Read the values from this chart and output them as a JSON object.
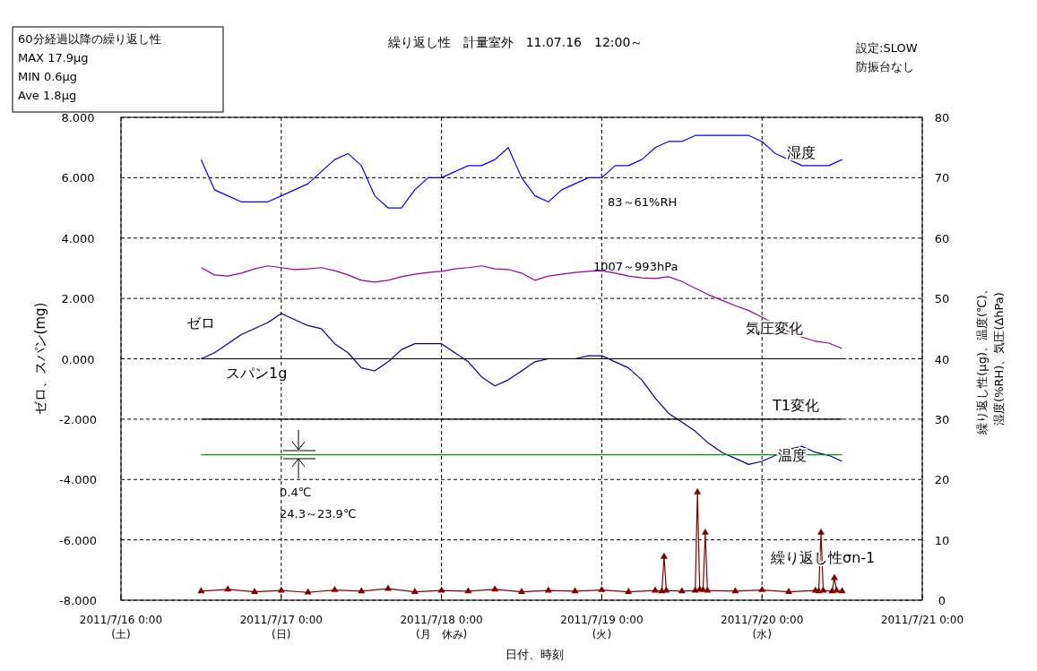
{
  "chart_data": {
    "type": "line",
    "title": "繰り返し性　計量室外　11.07.16　12:00～",
    "xlabel": "日付、時刻",
    "ylabel": "ゼロ、スパン(mg)",
    "y2label": "繰り返し性(μg)、温度(℃)、湿度(%RH)、気圧(ΔhPa)",
    "annotations": [
      "60分経過以降の繰り返し性\nMAX 17.9μg\nMIN 0.6μg\nAve 1.8μg",
      "設定:SLOW\n防振台なし",
      "83～61%RH",
      "1007～993hPa",
      "0.4℃",
      "24.3～23.9℃"
    ],
    "x": [
      "2011-07-16T12:00",
      "2011-07-16T14:00",
      "2011-07-16T16:00",
      "2011-07-16T18:00",
      "2011-07-16T20:00",
      "2011-07-16T22:00",
      "2011-07-17T00:00",
      "2011-07-17T02:00",
      "2011-07-17T04:00",
      "2011-07-17T06:00",
      "2011-07-17T08:00",
      "2011-07-17T10:00",
      "2011-07-17T12:00",
      "2011-07-17T14:00",
      "2011-07-17T16:00",
      "2011-07-17T18:00",
      "2011-07-17T20:00",
      "2011-07-17T22:00",
      "2011-07-18T00:00",
      "2011-07-18T02:00",
      "2011-07-18T04:00",
      "2011-07-18T06:00",
      "2011-07-18T08:00",
      "2011-07-18T10:00",
      "2011-07-18T12:00",
      "2011-07-18T14:00",
      "2011-07-18T16:00",
      "2011-07-18T18:00",
      "2011-07-18T20:00",
      "2011-07-18T22:00",
      "2011-07-19T00:00",
      "2011-07-19T02:00",
      "2011-07-19T04:00",
      "2011-07-19T06:00",
      "2011-07-19T08:00",
      "2011-07-19T10:00",
      "2011-07-19T12:00",
      "2011-07-19T14:00",
      "2011-07-19T16:00",
      "2011-07-19T18:00",
      "2011-07-19T20:00",
      "2011-07-19T22:00",
      "2011-07-20T00:00",
      "2011-07-20T02:00",
      "2011-07-20T04:00",
      "2011-07-20T06:00",
      "2011-07-20T08:00",
      "2011-07-20T10:00",
      "2011-07-20T12:00"
    ],
    "series": [
      {
        "name": "湿度",
        "color": "#0000ff",
        "axis": "y2",
        "values": [
          73,
          68,
          67,
          66,
          66,
          66,
          67,
          68,
          69,
          71,
          73,
          74,
          72,
          67,
          65,
          65,
          68,
          70,
          70,
          71,
          72,
          72,
          73,
          75,
          70,
          67,
          66,
          68,
          69,
          70,
          70,
          72,
          72,
          73,
          75,
          76,
          76,
          77,
          77,
          77,
          77,
          77,
          76,
          74,
          73,
          72,
          72,
          72,
          73
        ]
      },
      {
        "name": "気圧変化",
        "color": "#990099",
        "axis": "y2",
        "values": [
          55.1,
          53.9,
          53.7,
          54.2,
          54.9,
          55.4,
          55.1,
          54.8,
          54.9,
          55.1,
          54.6,
          53.9,
          53.0,
          52.7,
          53.0,
          53.6,
          54.0,
          54.3,
          54.5,
          54.9,
          55.1,
          55.4,
          54.9,
          54.8,
          54.2,
          53.0,
          53.7,
          54.0,
          54.3,
          54.5,
          54.6,
          54.2,
          53.7,
          53.4,
          53.3,
          53.6,
          52.8,
          51.7,
          50.6,
          49.7,
          48.8,
          48.0,
          46.9,
          45.7,
          44.5,
          43.6,
          42.9,
          42.6,
          41.7
        ]
      },
      {
        "name": "ゼロ",
        "color": "#000080",
        "values": [
          0.0,
          0.2,
          0.5,
          0.8,
          1.0,
          1.2,
          1.5,
          1.3,
          1.1,
          1.0,
          0.5,
          0.2,
          -0.3,
          -0.4,
          -0.1,
          0.3,
          0.5,
          0.5,
          0.5,
          0.2,
          -0.1,
          -0.6,
          -0.9,
          -0.7,
          -0.4,
          -0.1,
          0.0,
          0.0,
          0.0,
          0.1,
          0.1,
          -0.1,
          -0.3,
          -0.7,
          -1.3,
          -1.8,
          -2.1,
          -2.4,
          -2.8,
          -3.1,
          -3.3,
          -3.5,
          -3.4,
          -3.2,
          -3.0,
          -2.9,
          -3.1,
          -3.2,
          -3.4
        ]
      },
      {
        "name": "スパン1g",
        "color": "#000000",
        "x": [
          "2011-07-16T12:00",
          "2011-07-20T12:00"
        ],
        "values": [
          0.0,
          0.0
        ]
      },
      {
        "name": "T1変化",
        "color": "#000000",
        "x": [
          "2011-07-16T12:00",
          "2011-07-20T12:00"
        ],
        "values": [
          -2.0,
          -2.0
        ]
      },
      {
        "name": "温度",
        "color": "#009900",
        "axis": "y2",
        "x": [
          "2011-07-16T12:00",
          "2011-07-20T12:00"
        ],
        "values": [
          24.1,
          24.1
        ]
      },
      {
        "name": "繰り返し性σn-1",
        "color": "#800000",
        "axis": "y2",
        "marker": "triangle",
        "x": [
          "2011-07-16T12:00",
          "2011-07-16T16:00",
          "2011-07-16T20:00",
          "2011-07-17T00:00",
          "2011-07-17T04:00",
          "2011-07-17T08:00",
          "2011-07-17T12:00",
          "2011-07-17T16:00",
          "2011-07-17T20:00",
          "2011-07-18T00:00",
          "2011-07-18T04:00",
          "2011-07-18T08:00",
          "2011-07-18T12:00",
          "2011-07-18T16:00",
          "2011-07-18T20:00",
          "2011-07-19T00:00",
          "2011-07-19T04:00",
          "2011-07-19T08:00",
          "2011-07-19T09:00",
          "2011-07-19T09:20",
          "2011-07-19T09:40",
          "2011-07-19T12:00",
          "2011-07-19T14:00",
          "2011-07-19T14:20",
          "2011-07-19T14:40",
          "2011-07-19T15:10",
          "2011-07-19T15:30",
          "2011-07-19T15:50",
          "2011-07-19T20:00",
          "2011-07-20T00:00",
          "2011-07-20T04:00",
          "2011-07-20T08:00",
          "2011-07-20T08:30",
          "2011-07-20T08:50",
          "2011-07-20T09:10",
          "2011-07-20T10:30",
          "2011-07-20T10:50",
          "2011-07-20T11:10",
          "2011-07-20T12:00"
        ],
        "values": [
          1.5,
          1.8,
          1.4,
          1.6,
          1.3,
          1.7,
          1.5,
          1.9,
          1.4,
          1.6,
          1.5,
          1.8,
          1.4,
          1.6,
          1.5,
          1.7,
          1.4,
          1.6,
          1.5,
          7.2,
          1.6,
          1.5,
          1.6,
          17.9,
          1.8,
          1.7,
          11.2,
          1.6,
          1.5,
          1.7,
          1.4,
          1.6,
          1.5,
          11.2,
          1.6,
          1.5,
          3.7,
          1.6,
          1.5
        ]
      }
    ],
    "marker": "none",
    "line_style": "solid",
    "xlim": [
      "2011-07-16",
      "2011-07-21"
    ],
    "xticks": [
      {
        "value": "2011-07-16",
        "label": "2011/7/16 0:00\n(土)"
      },
      {
        "value": "2011-07-17",
        "label": "2011/7/17 0:00\n(日)"
      },
      {
        "value": "2011-07-18",
        "label": "2011/7/18 0:00\n(月　休み)"
      },
      {
        "value": "2011-07-19",
        "label": "2011/7/19 0:00\n(火)"
      },
      {
        "value": "2011-07-20",
        "label": "2011/7/20 0:00\n(水)"
      },
      {
        "value": "2011-07-21",
        "label": "2011/7/21 0:00"
      }
    ],
    "ylim": [
      -8,
      8
    ],
    "yticks": [
      {
        "value": -8,
        "label": "-8.000"
      },
      {
        "value": -6,
        "label": "-6.000"
      },
      {
        "value": -4,
        "label": "-4.000"
      },
      {
        "value": -2,
        "label": "-2.000"
      },
      {
        "value": 0,
        "label": "0.000"
      },
      {
        "value": 2,
        "label": "2.000"
      },
      {
        "value": 4,
        "label": "4.000"
      },
      {
        "value": 6,
        "label": "6.000"
      },
      {
        "value": 8,
        "label": "8.000"
      }
    ],
    "y2lim": [
      0,
      80
    ],
    "y2ticks": [
      0,
      10,
      20,
      30,
      40,
      50,
      60,
      70,
      80
    ],
    "grid": true
  }
}
